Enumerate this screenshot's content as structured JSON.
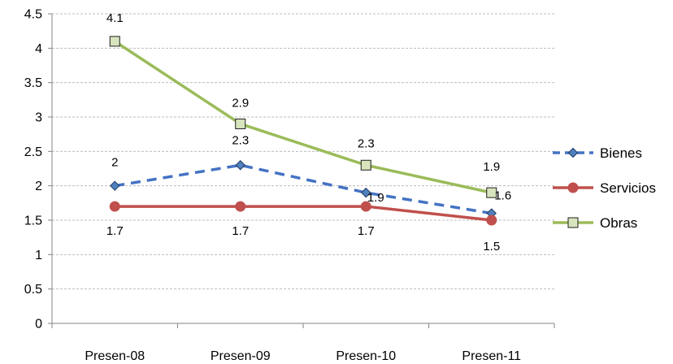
{
  "chart_data": {
    "type": "line",
    "title": "",
    "xlabel": "",
    "ylabel": "",
    "categories": [
      "Presen-08",
      "Presen-09",
      "Presen-10",
      "Presen-11"
    ],
    "ylim": [
      0,
      4.5
    ],
    "yticks": [
      "0",
      "0.5",
      "1",
      "1.5",
      "2",
      "2.5",
      "3",
      "3.5",
      "4",
      "4.5"
    ],
    "grid": true,
    "legend_position": "right",
    "series": [
      {
        "name": "Bienes",
        "values": [
          2,
          2.3,
          1.9,
          1.6
        ],
        "labels": [
          "2",
          "2.3",
          "1.9",
          "1.6"
        ],
        "color": "#4472c4",
        "marker": "diamond",
        "dashed": true
      },
      {
        "name": "Servicios",
        "values": [
          1.7,
          1.7,
          1.7,
          1.5
        ],
        "labels": [
          "1.7",
          "1.7",
          "1.7",
          "1.5"
        ],
        "color": "#c0504d",
        "marker": "circle",
        "dashed": false
      },
      {
        "name": "Obras",
        "values": [
          4.1,
          2.9,
          2.3,
          1.9
        ],
        "labels": [
          "4.1",
          "2.9",
          "2.3",
          "1.9"
        ],
        "color": "#9bbb59",
        "marker": "square",
        "dashed": false
      }
    ]
  }
}
